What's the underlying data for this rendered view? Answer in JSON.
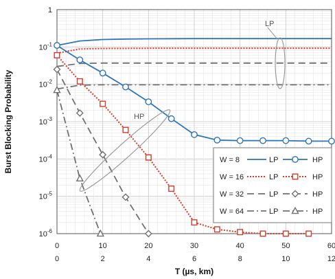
{
  "chart_data": {
    "type": "line",
    "title": "",
    "xlabel": "T (µs, km)",
    "ylabel": "Burst Blocking Probability",
    "x_top_ticks": [
      "0",
      "10",
      "20",
      "30",
      "40",
      "50",
      "60"
    ],
    "x_bottom_ticks": [
      "0",
      "2",
      "4",
      "6",
      "8",
      "10",
      "12"
    ],
    "y_tick_mantissa": [
      "1",
      "10",
      "10",
      "10",
      "10",
      "10",
      "10"
    ],
    "y_tick_exponent": [
      "",
      "-1",
      "-2",
      "-3",
      "-4",
      "-5",
      "-6"
    ],
    "xlim": [
      0,
      60
    ],
    "ylim": [
      1e-06,
      1
    ],
    "y_scale": "log",
    "grid": true,
    "legend_position": "bottom-right",
    "legend_rows": [
      {
        "label": "W = 8",
        "lp": "LP",
        "hp": "HP",
        "color": "#2e75b6",
        "lp_style": "solid",
        "marker": "circle"
      },
      {
        "label": "W = 16",
        "lp": "LP",
        "hp": "HP",
        "color": "#d43b2a",
        "lp_style": "dotted",
        "marker": "square"
      },
      {
        "label": "W = 32",
        "lp": "LP",
        "hp": "HP",
        "color": "#707070",
        "lp_style": "dashed",
        "marker": "diamond"
      },
      {
        "label": "W = 64",
        "lp": "LP",
        "hp": "HP",
        "color": "#707070",
        "lp_style": "dashdot",
        "marker": "triangle"
      }
    ],
    "annotations": {
      "lp": "LP",
      "hp": "HP"
    },
    "series": [
      {
        "group": "LP",
        "window": "W = 8",
        "color": "#2e75b6",
        "style": "solid",
        "marker": "none",
        "x": [
          0,
          5,
          10,
          15,
          20,
          30,
          40,
          50,
          60
        ],
        "y": [
          0.11,
          0.145,
          0.158,
          0.163,
          0.165,
          0.167,
          0.167,
          0.167,
          0.167
        ]
      },
      {
        "group": "LP",
        "window": "W = 16",
        "color": "#d43b2a",
        "style": "dotted",
        "marker": "none",
        "x": [
          0,
          5,
          10,
          20,
          30,
          40,
          50,
          60
        ],
        "y": [
          0.068,
          0.088,
          0.091,
          0.092,
          0.092,
          0.092,
          0.092,
          0.092
        ]
      },
      {
        "group": "LP",
        "window": "W = 32",
        "color": "#707070",
        "style": "dashed",
        "marker": "none",
        "x": [
          0,
          5,
          10,
          20,
          30,
          40,
          50,
          60
        ],
        "y": [
          0.03,
          0.036,
          0.037,
          0.037,
          0.037,
          0.037,
          0.037,
          0.037
        ]
      },
      {
        "group": "LP",
        "window": "W = 64",
        "color": "#707070",
        "style": "dashdot",
        "marker": "none",
        "x": [
          0,
          5,
          10,
          20,
          30,
          40,
          50,
          60
        ],
        "y": [
          0.0075,
          0.0095,
          0.0097,
          0.0097,
          0.0097,
          0.0097,
          0.0097,
          0.0097
        ]
      },
      {
        "group": "HP",
        "window": "W = 8",
        "color": "#2e75b6",
        "style": "solid",
        "marker": "circle",
        "x": [
          0,
          5,
          10,
          15,
          20,
          25,
          30,
          35,
          40,
          45,
          50,
          55,
          60
        ],
        "y": [
          0.11,
          0.045,
          0.02,
          0.0085,
          0.0034,
          0.0012,
          0.00045,
          0.00032,
          0.00031,
          0.00031,
          0.00031,
          0.0003,
          0.0003
        ]
      },
      {
        "group": "HP",
        "window": "W = 16",
        "color": "#d43b2a",
        "style": "dotted",
        "marker": "square",
        "x": [
          0,
          5,
          10,
          15,
          20,
          25,
          30,
          35,
          40,
          45,
          50,
          55
        ],
        "y": [
          0.06,
          0.012,
          0.003,
          0.0006,
          0.00011,
          1.6e-05,
          2e-06,
          1.3e-06,
          1.1e-06,
          1e-06,
          1e-06,
          1e-06
        ]
      },
      {
        "group": "HP",
        "window": "W = 32",
        "color": "#707070",
        "style": "dashed",
        "marker": "diamond",
        "x": [
          0,
          5,
          10,
          15,
          20
        ],
        "y": [
          0.025,
          0.0017,
          0.00013,
          9.5e-06,
          1e-06
        ]
      },
      {
        "group": "HP",
        "window": "W = 64",
        "color": "#707070",
        "style": "dashdot",
        "marker": "triangle",
        "x": [
          0,
          5,
          9.5
        ],
        "y": [
          0.007,
          3e-05,
          1e-06
        ]
      }
    ]
  }
}
